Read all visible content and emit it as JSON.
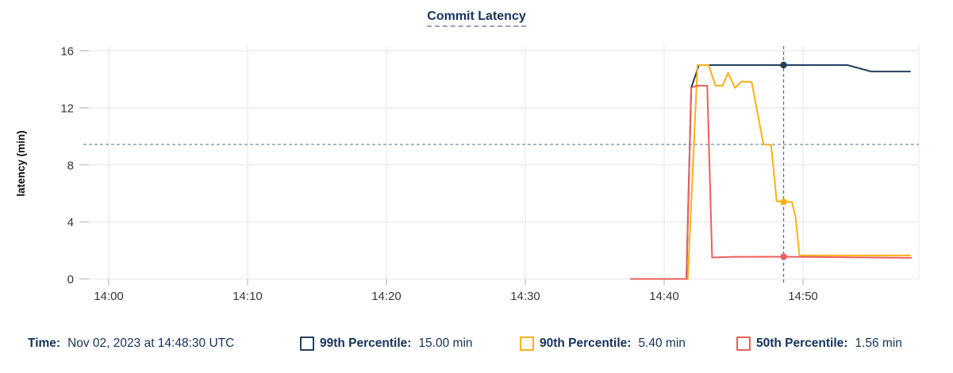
{
  "title": "Commit Latency",
  "legend": {
    "time_label": "Time:",
    "time_value": "Nov 02, 2023 at 14:48:30 UTC",
    "items": [
      {
        "label": "99th Percentile:",
        "value": "15.00 min",
        "color": "#23405f"
      },
      {
        "label": "90th Percentile:",
        "value": "5.40 min",
        "color": "#f9b214"
      },
      {
        "label": "50th Percentile:",
        "value": "1.56 min",
        "color": "#ec5f5e"
      }
    ]
  },
  "chart_data": {
    "type": "line",
    "title": "Commit Latency",
    "xlabel": "",
    "ylabel": "latency (min)",
    "ylim": [
      0,
      16
    ],
    "yticks": [
      0,
      4,
      8,
      12,
      16
    ],
    "x_axis_unit": "minutes after 14:00",
    "xticks": [
      {
        "minutes": 0,
        "label": "14:00"
      },
      {
        "minutes": 10,
        "label": "14:10"
      },
      {
        "minutes": 20,
        "label": "14:20"
      },
      {
        "minutes": 30,
        "label": "14:30"
      },
      {
        "minutes": 40,
        "label": "14:40"
      },
      {
        "minutes": 50,
        "label": "14:50"
      }
    ],
    "grid": true,
    "legend_position": "bottom",
    "threshold_line": {
      "value": 9.43,
      "style": "dashed",
      "color": "#8da0b3"
    },
    "cursor": {
      "minutes": 48.6,
      "time_label": "14:48:30 UTC",
      "date_label": "Nov 02, 2023",
      "color": "#5f7183"
    },
    "series": [
      {
        "name": "99th Percentile",
        "color": "#23405f",
        "cursor_value": 15.0,
        "cursor_value_label": "15.00 min",
        "points": [
          [
            37.6,
            0
          ],
          [
            41.6,
            0
          ],
          [
            41.95,
            13.4
          ],
          [
            42.5,
            15
          ],
          [
            53.2,
            15
          ],
          [
            54.9,
            14.55
          ],
          [
            57.7,
            14.55
          ]
        ]
      },
      {
        "name": "90th Percentile",
        "color": "#f9b214",
        "cursor_value": 5.4,
        "cursor_value_label": "5.40 min",
        "points": [
          [
            37.6,
            0
          ],
          [
            41.7,
            0
          ],
          [
            42.4,
            15
          ],
          [
            43.2,
            15
          ],
          [
            43.7,
            13.55
          ],
          [
            44.2,
            13.55
          ],
          [
            44.6,
            14.45
          ],
          [
            45.1,
            13.4
          ],
          [
            45.6,
            13.85
          ],
          [
            46.3,
            13.8
          ],
          [
            47.15,
            9.45
          ],
          [
            47.7,
            9.4
          ],
          [
            48.1,
            5.45
          ],
          [
            49.2,
            5.4
          ],
          [
            49.45,
            4.4
          ],
          [
            49.75,
            1.65
          ],
          [
            57.7,
            1.65
          ]
        ]
      },
      {
        "name": "50th Percentile",
        "color": "#ec5f5e",
        "cursor_value": 1.56,
        "cursor_value_label": "1.56 min",
        "points": [
          [
            37.6,
            0
          ],
          [
            41.6,
            0
          ],
          [
            41.95,
            13.4
          ],
          [
            42.3,
            13.55
          ],
          [
            43.1,
            13.55
          ],
          [
            43.45,
            1.5
          ],
          [
            45.0,
            1.55
          ],
          [
            48.6,
            1.56
          ],
          [
            57.8,
            1.48
          ]
        ]
      }
    ]
  }
}
